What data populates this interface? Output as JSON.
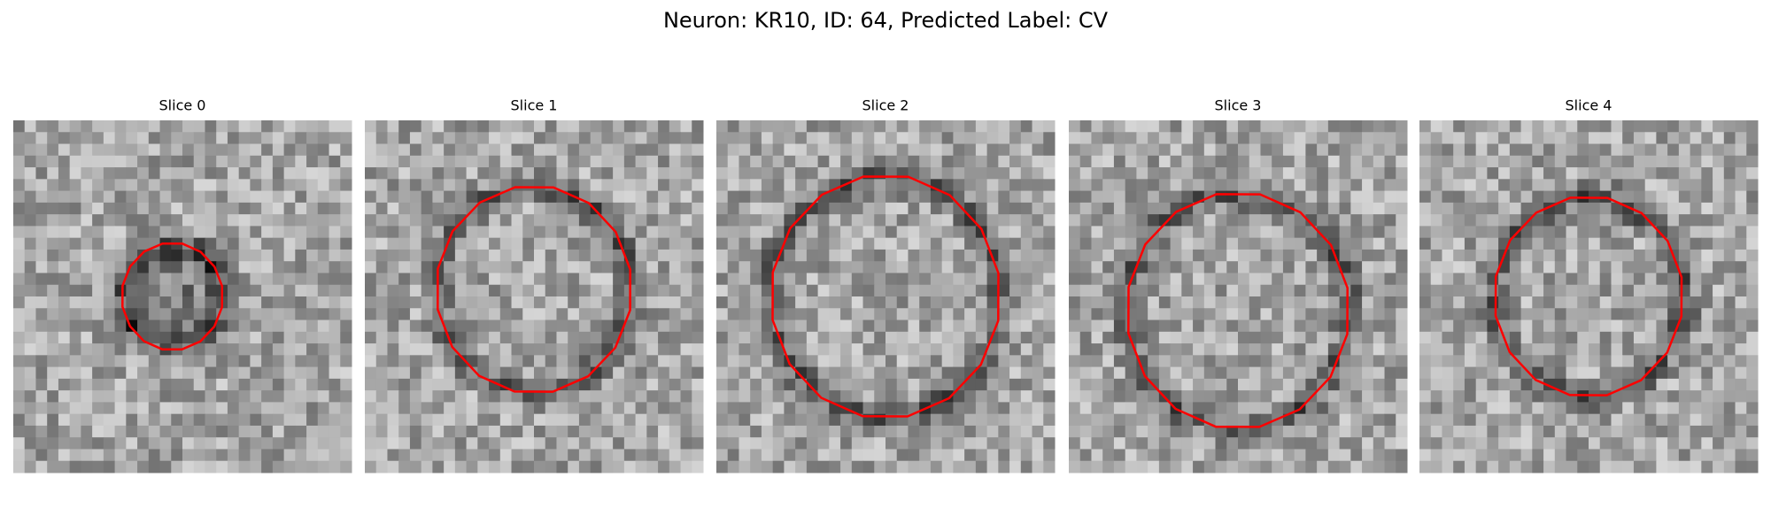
{
  "title": "Neuron: KR10, ID: 64, Predicted Label: CV",
  "panels": [
    {
      "title": "Slice 0"
    },
    {
      "title": "Slice 1"
    },
    {
      "title": "Slice 2"
    },
    {
      "title": "Slice 3"
    },
    {
      "title": "Slice 4"
    }
  ]
}
